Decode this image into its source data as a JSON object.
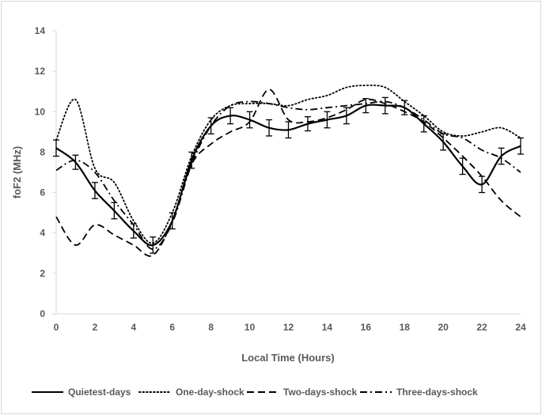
{
  "chart_data": {
    "type": "line",
    "title": "",
    "xlabel": "Local Time (Hours)",
    "ylabel": "foF2 (MHz)",
    "xlim": [
      0,
      24
    ],
    "ylim": [
      0,
      14
    ],
    "xticks": [
      0,
      2,
      4,
      6,
      8,
      10,
      12,
      14,
      16,
      18,
      20,
      22,
      24
    ],
    "yticks": [
      0,
      2,
      4,
      6,
      8,
      10,
      12,
      14
    ],
    "grid": false,
    "legend_position": "bottom",
    "x": [
      0,
      1,
      2,
      3,
      4,
      5,
      6,
      7,
      8,
      9,
      10,
      11,
      12,
      13,
      14,
      15,
      16,
      17,
      18,
      19,
      20,
      21,
      22,
      23,
      24
    ],
    "series": [
      {
        "name": "Quietest-days",
        "style": "solid",
        "values": [
          8.2,
          7.5,
          6.1,
          5.1,
          4.1,
          3.4,
          4.6,
          7.6,
          9.3,
          9.8,
          9.6,
          9.2,
          9.1,
          9.4,
          9.6,
          9.8,
          10.3,
          10.3,
          10.2,
          9.4,
          8.5,
          7.3,
          6.4,
          7.8,
          8.3
        ],
        "error": [
          0.4,
          0.35,
          0.4,
          0.4,
          0.35,
          0.4,
          0.4,
          0.4,
          0.4,
          0.4,
          0.4,
          0.4,
          0.4,
          0.35,
          0.4,
          0.4,
          0.35,
          0.4,
          0.35,
          0.4,
          0.4,
          0.4,
          0.4,
          0.4,
          0.4
        ]
      },
      {
        "name": "One-day-shock",
        "style": "dotted",
        "values": [
          8.6,
          10.6,
          7.2,
          6.5,
          4.6,
          3.5,
          5.0,
          7.8,
          9.6,
          10.3,
          10.4,
          10.4,
          10.3,
          10.6,
          10.8,
          11.2,
          11.3,
          11.2,
          10.5,
          9.8,
          9.0,
          8.8,
          9.0,
          9.2,
          8.7
        ]
      },
      {
        "name": "Two-days-shock",
        "style": "dashed",
        "values": [
          4.8,
          3.4,
          4.4,
          3.9,
          3.4,
          2.9,
          4.6,
          7.4,
          8.4,
          9.0,
          9.5,
          11.1,
          9.6,
          9.5,
          9.7,
          10.1,
          10.6,
          10.4,
          10.0,
          9.5,
          8.7,
          7.8,
          6.8,
          5.6,
          4.8
        ]
      },
      {
        "name": "Three-days-shock",
        "style": "dash-dot",
        "values": [
          7.1,
          7.6,
          7.0,
          5.6,
          4.4,
          3.2,
          4.5,
          7.4,
          9.3,
          10.3,
          10.5,
          10.4,
          10.2,
          10.1,
          10.2,
          10.3,
          10.4,
          10.5,
          10.2,
          9.6,
          8.9,
          8.7,
          8.1,
          7.7,
          7.0
        ]
      }
    ]
  }
}
